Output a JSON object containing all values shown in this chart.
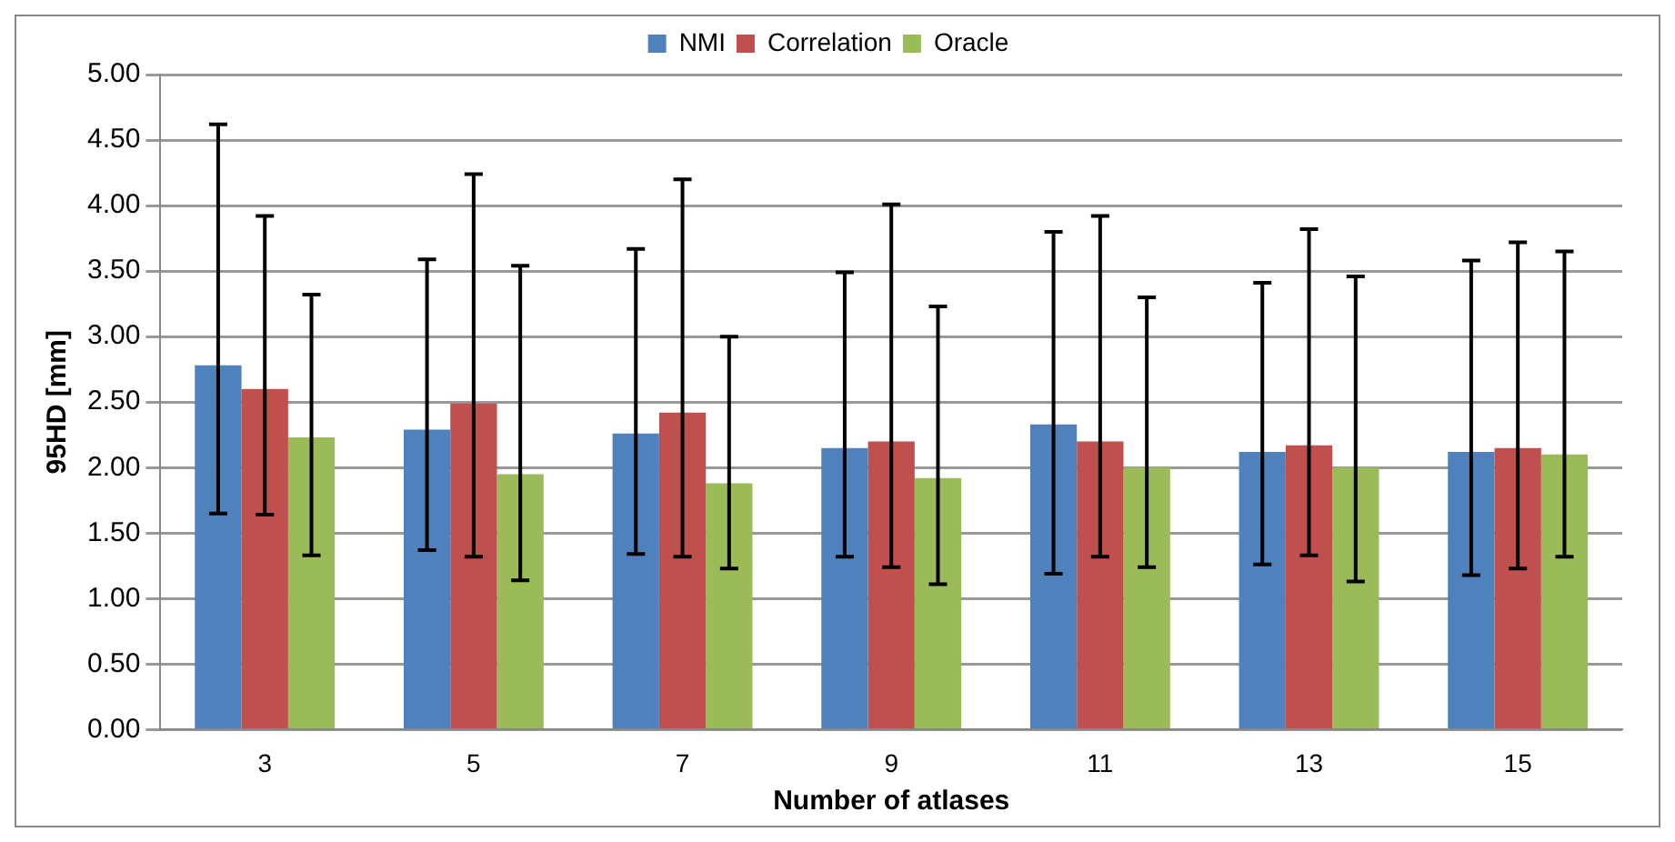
{
  "chart_data": {
    "type": "bar",
    "xlabel": "Number of atlases",
    "ylabel": "95HD [mm]",
    "categories": [
      "3",
      "5",
      "7",
      "9",
      "11",
      "13",
      "15"
    ],
    "series": [
      {
        "name": "NMI",
        "color": "#4f81bd",
        "values": [
          2.78,
          2.29,
          2.26,
          2.15,
          2.33,
          2.12,
          2.12
        ],
        "errors": [
          [
            1.65,
            4.62
          ],
          [
            1.37,
            3.59
          ],
          [
            1.34,
            3.67
          ],
          [
            1.32,
            3.49
          ],
          [
            1.19,
            3.8
          ],
          [
            1.26,
            3.41
          ],
          [
            1.18,
            3.58
          ]
        ]
      },
      {
        "name": "Correlation",
        "color": "#c0504d",
        "values": [
          2.6,
          2.49,
          2.42,
          2.2,
          2.2,
          2.17,
          2.15
        ],
        "errors": [
          [
            1.64,
            3.92
          ],
          [
            1.32,
            4.24
          ],
          [
            1.32,
            4.2
          ],
          [
            1.24,
            4.01
          ],
          [
            1.32,
            3.92
          ],
          [
            1.33,
            3.82
          ],
          [
            1.23,
            3.72
          ]
        ]
      },
      {
        "name": "Oracle",
        "color": "#9bbb59",
        "values": [
          2.23,
          1.95,
          1.88,
          1.92,
          2.0,
          2.0,
          2.1
        ],
        "errors": [
          [
            1.33,
            3.32
          ],
          [
            1.14,
            3.54
          ],
          [
            1.23,
            3.0
          ],
          [
            1.11,
            3.23
          ],
          [
            1.24,
            3.3
          ],
          [
            1.13,
            3.46
          ],
          [
            1.32,
            3.65
          ]
        ]
      }
    ],
    "ylim": [
      0,
      5
    ],
    "yticks": [
      {
        "value": 0,
        "label": "0.00"
      },
      {
        "value": 0.5,
        "label": "0.50"
      },
      {
        "value": 1,
        "label": "1.00"
      },
      {
        "value": 1.5,
        "label": "1.50"
      },
      {
        "value": 2,
        "label": "2.00"
      },
      {
        "value": 2.5,
        "label": "2.50"
      },
      {
        "value": 3,
        "label": "3.00"
      },
      {
        "value": 3.5,
        "label": "3.50"
      },
      {
        "value": 4,
        "label": "4.00"
      },
      {
        "value": 4.5,
        "label": "4.50"
      },
      {
        "value": 5,
        "label": "5.00"
      }
    ],
    "grid": "y",
    "legend": "top"
  }
}
